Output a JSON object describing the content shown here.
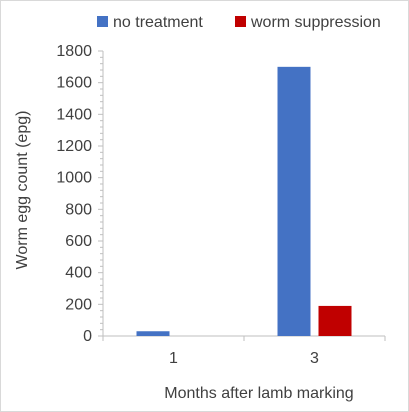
{
  "chart_data": {
    "type": "bar",
    "title": "",
    "xlabel": "Months after lamb marking",
    "ylabel": "Worm egg count (epg)",
    "categories": [
      "1",
      "3"
    ],
    "series": [
      {
        "name": "no treatment",
        "color": "#4472C4",
        "values": [
          30,
          1700
        ]
      },
      {
        "name": "worm suppression",
        "color": "#C00000",
        "values": [
          0,
          190
        ]
      }
    ],
    "ylim": [
      0,
      1800
    ],
    "yticks": [
      0,
      200,
      400,
      600,
      800,
      1000,
      1200,
      1400,
      1600,
      1800
    ],
    "minor_ticks_per_major": 4,
    "grid": false,
    "legend_position": "top"
  }
}
